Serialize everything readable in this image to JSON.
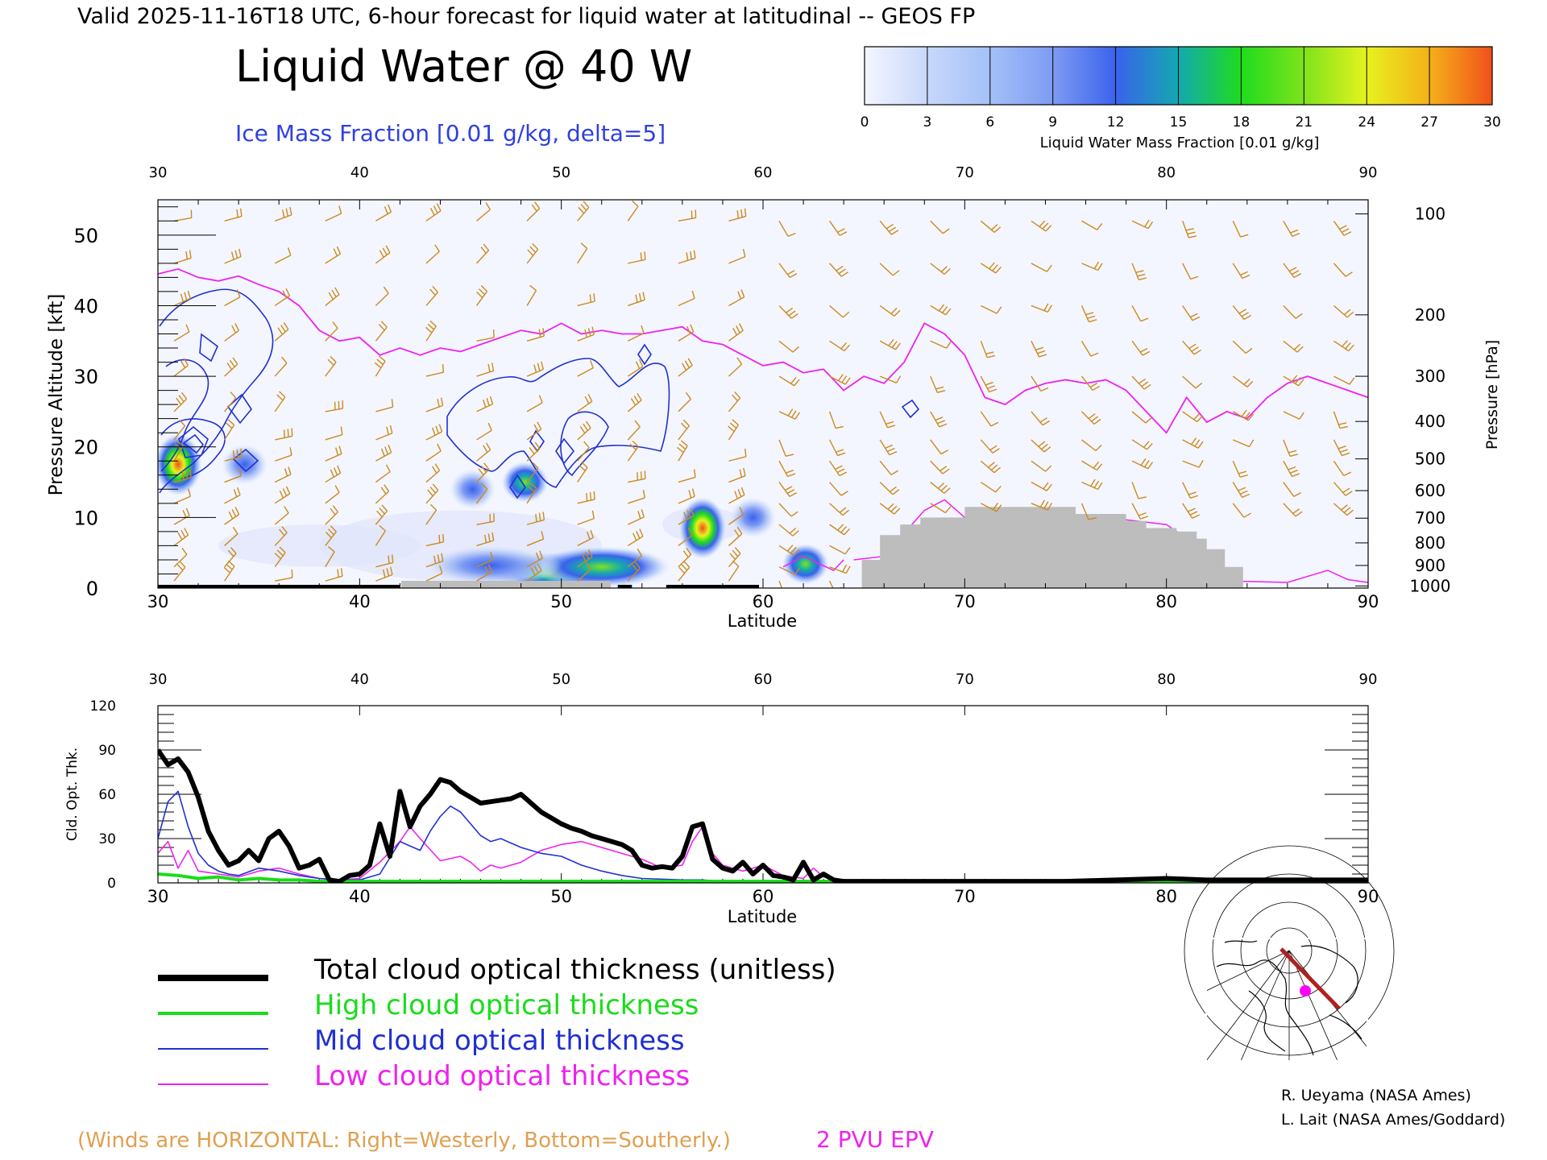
{
  "header": {
    "valid_line": "Valid 2025-11-16T18 UTC, 6-hour forecast for liquid water at latitudinal -- GEOS FP",
    "main_title": "Liquid Water @ 40 W",
    "ice_label": "Ice Mass Fraction [0.01 g/kg, delta=5]",
    "colorbar_label": "Liquid Water Mass Fraction [0.01 g/kg]",
    "colorbar_ticks": [
      "0",
      "3",
      "6",
      "9",
      "12",
      "15",
      "18",
      "21",
      "24",
      "27",
      "30"
    ],
    "colorbar_colors": [
      "#f4f6ff",
      "#c8d8fb",
      "#a4c0f8",
      "#7e9bf3",
      "#3a62ec",
      "#14a8b0",
      "#1edc1e",
      "#7ee31c",
      "#e6f21e",
      "#f4b11a",
      "#f0501a"
    ]
  },
  "colors": {
    "wind_barb": "#cc8a1e",
    "epv": "#ee22ee",
    "ice_contour": "#2030d0",
    "terrain": "#bdbdbd",
    "total_line": "#000000",
    "high_line": "#18dd18",
    "mid_line": "#2030d0",
    "low_line": "#ee22ee",
    "track": "#b02020",
    "marker": "#ff00ff"
  },
  "chart_data": [
    {
      "type": "heatmap",
      "xlabel": "Latitude",
      "ylabel": "Pressure Altitude [kft]",
      "ylabel_right": "Pressure [hPa]",
      "xlim": [
        30,
        90
      ],
      "ylim": [
        0,
        55
      ],
      "x_ticks": [
        30,
        40,
        50,
        60,
        70,
        80,
        90
      ],
      "y_ticks": [
        0,
        10,
        20,
        30,
        40,
        50
      ],
      "pressure_ticks": [
        {
          "hpa": "100",
          "kft": 53.0
        },
        {
          "hpa": "200",
          "kft": 38.7
        },
        {
          "hpa": "300",
          "kft": 30.0
        },
        {
          "hpa": "400",
          "kft": 23.6
        },
        {
          "hpa": "500",
          "kft": 18.3
        },
        {
          "hpa": "600",
          "kft": 13.8
        },
        {
          "hpa": "700",
          "kft": 9.9
        },
        {
          "hpa": "800",
          "kft": 6.4
        },
        {
          "hpa": "900",
          "kft": 3.2
        },
        {
          "hpa": "1000",
          "kft": 0.3
        }
      ],
      "liquid_water_blobs": [
        {
          "lat": 31.0,
          "kft": 17.5,
          "peak": 28
        },
        {
          "lat": 34.3,
          "kft": 17.5,
          "peak": 6
        },
        {
          "lat": 45.6,
          "kft": 14.0,
          "peak": 10
        },
        {
          "lat": 48.2,
          "kft": 15.0,
          "peak": 17
        },
        {
          "lat": 57.0,
          "kft": 8.5,
          "peak": 27
        },
        {
          "lat": 62.1,
          "kft": 3.4,
          "peak": 15
        },
        {
          "lat": 49.6,
          "kft": 2.2,
          "peak": 17
        },
        {
          "lat": 52.0,
          "kft": 3.0,
          "peak": 12
        },
        {
          "lat": 46.5,
          "kft": 3.2,
          "peak": 8
        },
        {
          "lat": 59.5,
          "kft": 10.0,
          "peak": 7
        }
      ],
      "epv_2pvu_kft": [
        [
          30,
          44.5
        ],
        [
          31,
          45.2
        ],
        [
          32,
          44.0
        ],
        [
          33,
          43.5
        ],
        [
          34,
          44.2
        ],
        [
          35,
          43.0
        ],
        [
          36,
          42.0
        ],
        [
          37,
          40.0
        ],
        [
          38,
          36.5
        ],
        [
          39,
          35.0
        ],
        [
          40,
          35.5
        ],
        [
          41,
          33.0
        ],
        [
          42,
          34.0
        ],
        [
          43,
          33.0
        ],
        [
          44,
          34.0
        ],
        [
          45,
          33.5
        ],
        [
          46,
          34.5
        ],
        [
          47,
          35.5
        ],
        [
          48,
          36.5
        ],
        [
          49,
          36.0
        ],
        [
          50,
          37.5
        ],
        [
          51,
          36.0
        ],
        [
          52,
          36.5
        ],
        [
          53,
          36.0
        ],
        [
          54,
          36.0
        ],
        [
          55,
          36.5
        ],
        [
          56,
          37.0
        ],
        [
          57,
          35.0
        ],
        [
          58,
          34.5
        ],
        [
          59,
          33.0
        ],
        [
          60,
          31.5
        ],
        [
          61,
          32.0
        ],
        [
          62,
          30.5
        ],
        [
          63,
          31.0
        ],
        [
          64,
          28.0
        ],
        [
          65,
          30.0
        ],
        [
          66,
          29.0
        ],
        [
          67,
          32.0
        ],
        [
          68,
          37.5
        ],
        [
          69,
          36.0
        ],
        [
          70,
          33.0
        ],
        [
          71,
          27.0
        ],
        [
          72,
          26.0
        ],
        [
          73,
          28.0
        ],
        [
          74,
          29.0
        ],
        [
          75,
          29.5
        ],
        [
          76,
          29.0
        ],
        [
          77,
          29.5
        ],
        [
          78,
          28.0
        ],
        [
          79,
          25.0
        ],
        [
          80,
          22.0
        ],
        [
          81,
          27.0
        ],
        [
          82,
          23.5
        ],
        [
          83,
          25.0
        ],
        [
          84,
          24.0
        ],
        [
          85,
          27.0
        ],
        [
          86,
          29.0
        ],
        [
          87,
          30.0
        ],
        [
          88,
          29.0
        ],
        [
          89,
          28.0
        ],
        [
          90,
          27.0
        ]
      ],
      "terrain_kft": [
        [
          64.9,
          0
        ],
        [
          64.9,
          4
        ],
        [
          65.8,
          4
        ],
        [
          65.8,
          7.5
        ],
        [
          66.8,
          7.5
        ],
        [
          66.8,
          9.0
        ],
        [
          67.8,
          9.0
        ],
        [
          67.8,
          10.0
        ],
        [
          70,
          10.0
        ],
        [
          70,
          11.5
        ],
        [
          75.5,
          11.5
        ],
        [
          75.5,
          10.5
        ],
        [
          78,
          10.5
        ],
        [
          78,
          9.5
        ],
        [
          79,
          9.5
        ],
        [
          79,
          8.5
        ],
        [
          80.5,
          8.5
        ],
        [
          80.5,
          8.0
        ],
        [
          81.5,
          8.0
        ],
        [
          81.5,
          7.0
        ],
        [
          82,
          7.0
        ],
        [
          82,
          5.5
        ],
        [
          82.9,
          5.5
        ],
        [
          82.9,
          3.0
        ],
        [
          83.8,
          3.0
        ],
        [
          83.8,
          0
        ]
      ]
    },
    {
      "type": "line",
      "xlabel": "Latitude",
      "ylabel": "Cld. Opt. Thk.",
      "xlim": [
        30,
        90
      ],
      "ylim": [
        0,
        120
      ],
      "x_ticks": [
        30,
        40,
        50,
        60,
        70,
        80,
        90
      ],
      "y_ticks": [
        0,
        30,
        60,
        90,
        120
      ],
      "series": [
        {
          "name": "Total cloud optical thickness (unitless)",
          "x": [
            30,
            30.5,
            31,
            31.5,
            32,
            32.5,
            33,
            33.5,
            34,
            34.5,
            35,
            35.5,
            36,
            36.5,
            37,
            37.5,
            38,
            38.5,
            39,
            39.5,
            40,
            40.5,
            41,
            41.5,
            42,
            42.5,
            43,
            43.5,
            44,
            44.5,
            45,
            45.5,
            46,
            46.5,
            47,
            47.5,
            48,
            48.5,
            49,
            49.5,
            50,
            50.5,
            51,
            51.5,
            52,
            52.5,
            53,
            53.5,
            54,
            54.5,
            55,
            55.5,
            56,
            56.5,
            57,
            57.5,
            58,
            58.5,
            59,
            59.5,
            60,
            60.5,
            61,
            61.5,
            62,
            62.5,
            63,
            63.5,
            64,
            66,
            70,
            75,
            80,
            82,
            85,
            90
          ],
          "y": [
            90,
            80,
            84,
            75,
            58,
            35,
            22,
            12,
            15,
            22,
            15,
            30,
            35,
            25,
            10,
            12,
            16,
            2,
            1,
            5,
            6,
            12,
            40,
            18,
            62,
            38,
            52,
            60,
            70,
            68,
            62,
            58,
            54,
            55,
            56,
            57,
            60,
            54,
            48,
            44,
            40,
            37,
            35,
            32,
            30,
            28,
            26,
            22,
            12,
            10,
            11,
            10,
            18,
            38,
            40,
            16,
            10,
            8,
            14,
            6,
            12,
            5,
            4,
            2,
            14,
            2,
            6,
            2,
            1,
            1,
            1,
            1,
            3,
            2,
            2,
            2
          ]
        },
        {
          "name": "High cloud optical thickness",
          "x": [
            30,
            31,
            32,
            33,
            34,
            35,
            36,
            37,
            38,
            40,
            45,
            50,
            55,
            60,
            65,
            70,
            80,
            90
          ],
          "y": [
            6,
            5,
            3,
            4,
            2,
            3,
            2,
            2,
            1,
            1,
            1,
            1,
            1,
            1,
            1,
            1,
            1,
            1
          ]
        },
        {
          "name": "Mid cloud optical thickness",
          "x": [
            30,
            30.5,
            31,
            31.5,
            32,
            32.5,
            33,
            33.5,
            34,
            35,
            36,
            37,
            38,
            39,
            40,
            41,
            42,
            43,
            43.5,
            44,
            44.5,
            45,
            45.5,
            46,
            46.5,
            47,
            48,
            49,
            50,
            51,
            52,
            53,
            54,
            56,
            57,
            58,
            60,
            62,
            65,
            70,
            80,
            90
          ],
          "y": [
            30,
            55,
            62,
            38,
            20,
            12,
            8,
            6,
            5,
            10,
            8,
            5,
            3,
            2,
            2,
            6,
            28,
            22,
            35,
            45,
            52,
            48,
            40,
            32,
            28,
            30,
            24,
            20,
            18,
            12,
            8,
            5,
            3,
            2,
            2,
            1,
            1,
            1,
            0,
            0,
            0,
            0
          ]
        },
        {
          "name": "Low cloud optical thickness",
          "x": [
            30,
            30.5,
            31,
            31.5,
            32,
            33,
            34,
            35,
            36,
            37,
            38,
            39,
            40,
            41,
            42,
            42.5,
            43,
            44,
            45,
            45.5,
            46,
            46.5,
            47,
            48,
            49,
            50,
            51,
            52,
            53,
            54,
            55,
            56,
            56.5,
            57,
            57.5,
            58,
            59,
            60,
            61,
            62,
            62.5,
            63,
            64,
            66,
            70,
            75,
            80,
            82,
            85,
            90
          ],
          "y": [
            20,
            28,
            10,
            22,
            8,
            6,
            4,
            8,
            10,
            6,
            3,
            2,
            3,
            14,
            28,
            38,
            30,
            15,
            18,
            14,
            8,
            12,
            10,
            14,
            22,
            26,
            28,
            24,
            20,
            16,
            10,
            12,
            28,
            38,
            20,
            12,
            8,
            12,
            5,
            3,
            10,
            4,
            1,
            1,
            1,
            1,
            1,
            2,
            1,
            1
          ]
        }
      ]
    }
  ],
  "legend": {
    "total": "Total cloud optical thickness (unitless)",
    "high": "High cloud optical thickness",
    "mid": "Mid cloud optical thickness",
    "low": "Low cloud optical thickness"
  },
  "credits": {
    "line1": "R. Ueyama (NASA Ames)",
    "line2": "L. Lait (NASA Ames/Goddard)"
  },
  "footer": {
    "winds_note": "(Winds are HORIZONTAL: Right=Westerly, Bottom=Southerly.)",
    "epv_label": "2 PVU EPV"
  }
}
